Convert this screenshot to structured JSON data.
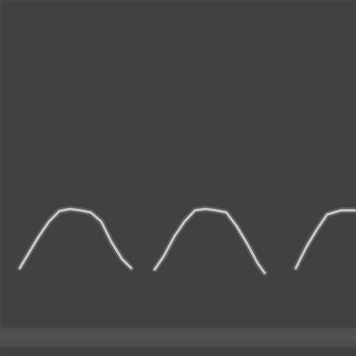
{
  "chart_data": {
    "type": "line",
    "x": [
      28,
      40,
      55,
      70,
      85,
      100,
      115,
      130,
      145,
      160,
      175,
      188,
      205,
      222,
      235,
      250,
      265,
      280,
      295,
      310,
      325,
      340,
      355,
      370,
      380,
      400,
      425,
      440,
      455,
      470,
      490,
      510
    ],
    "values": [
      127,
      147,
      172,
      194,
      209,
      212,
      210,
      207,
      194,
      164,
      140,
      127,
      null,
      125,
      144,
      172,
      194,
      210,
      212,
      210,
      207,
      187,
      162,
      134,
      120,
      null,
      127,
      157,
      182,
      204,
      210,
      210
    ],
    "color": "#d9d9d9",
    "xlim": [
      0,
      512
    ],
    "ylim": [
      0,
      512
    ],
    "grid": false,
    "tick_labels": false
  }
}
